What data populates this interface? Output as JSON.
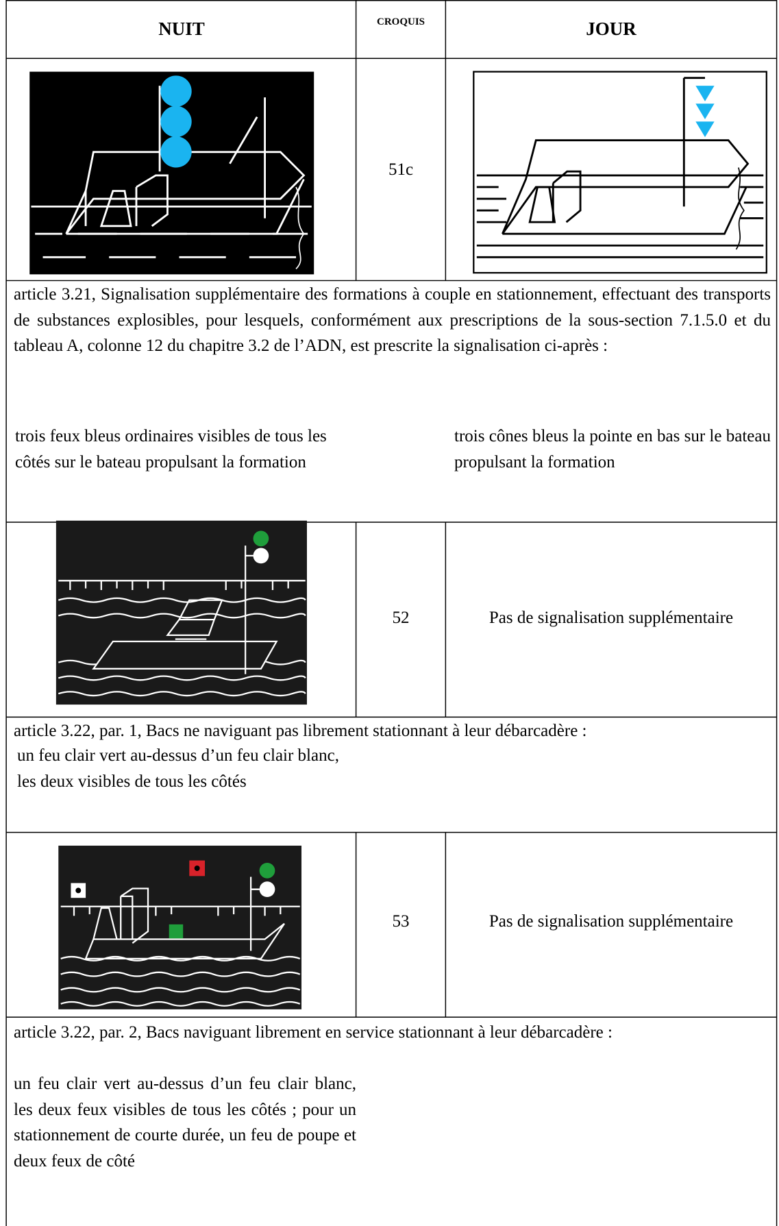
{
  "header": {
    "nuit": "NUIT",
    "croquis": "CROQUIS",
    "jour": "JOUR"
  },
  "rows": [
    {
      "croquis": "51c",
      "article": "article 3.21, Signalisation supplémentaire des formations à couple en stationnement, effectuant des transports de substances explosibles, pour lesquels, conformément aux prescriptions de la sous-section 7.1.5.0 et du tableau A, colonne 12 du chapitre 3.2 de l’ADN, est prescrite la signalisation ci-après :",
      "nuit": "trois feux bleus ordinaires visibles de tous les côtés sur le bateau propulsant la formation",
      "jour": "trois cônes bleus la pointe en bas sur le bateau propulsant la formation"
    },
    {
      "croquis": "52",
      "jour": "Pas de signalisation supplémentaire",
      "article": "article 3.22, par. 1, Bacs ne naviguant pas librement stationnant à leur débarcadère :",
      "nuit": "un feu clair vert au-dessus d’un feu clair blanc, les deux visibles de tous les côtés"
    },
    {
      "croquis": "53",
      "jour": "Pas de signalisation supplémentaire",
      "article": "article 3.22, par. 2, Bacs naviguant librement en service stationnant à leur débarcadère :",
      "nuit": "un feu clair vert au-dessus d’un feu clair blanc, les deux feux visibles de tous les côtés ; pour un stationnement de courte durée, un feu de poupe et deux feux de côté"
    }
  ]
}
